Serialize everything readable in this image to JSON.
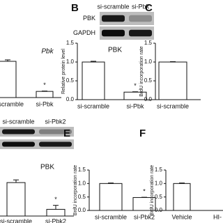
{
  "chart_data": [
    {
      "type": "bar",
      "title": "Pbk",
      "title_style": "italic",
      "categories": [
        "si-scramble",
        "si-Pbk"
      ],
      "values": [
        1.0,
        0.17
      ],
      "errors": [
        0.04,
        0.01
      ],
      "ylim": [
        0,
        1.5
      ],
      "annotations": [
        {
          "text": "*",
          "category": 1
        }
      ]
    },
    {
      "type": "bar",
      "panel": "B",
      "title": "PBK",
      "ylabel": "Relative protein level",
      "categories": [
        "si-scramble",
        "si-Pbk"
      ],
      "values": [
        1.0,
        0.2
      ],
      "errors": [
        0.02,
        0.01
      ],
      "ylim": [
        0,
        1.5
      ],
      "yticks": [
        {
          "value": 0,
          "label": "0.0"
        },
        {
          "value": 0.5,
          "label": "0.5"
        },
        {
          "value": 1,
          "label": "1.0"
        },
        {
          "value": 1.5,
          "label": "1.5"
        }
      ],
      "annotations": [
        {
          "text": "*",
          "category": 1
        }
      ],
      "blot": {
        "lanes": [
          "si-scramble",
          "si-Pbk"
        ],
        "rows": [
          "PBK",
          "GAPDH"
        ]
      }
    },
    {
      "type": "bar",
      "panel": "C",
      "ylabel": "BrdU incorporation rate",
      "categories": [
        "si-scramble"
      ],
      "values": [
        1.0
      ],
      "errors": [
        0.01
      ],
      "ylim": [
        0,
        1.5
      ],
      "yticks": [
        {
          "value": 0,
          "label": "0.0"
        },
        {
          "value": 0.5,
          "label": "0.5"
        },
        {
          "value": 1,
          "label": "1.0"
        },
        {
          "value": 1.5,
          "label": "1.5"
        }
      ]
    },
    {
      "type": "bar",
      "title": "PBK",
      "categories": [
        "si-scramble",
        "si-Pbk2"
      ],
      "values": [
        1.0,
        0.2
      ],
      "errors": [
        0.08,
        0.12
      ],
      "ylim": [
        0,
        1.5
      ],
      "annotations": [
        {
          "text": "*",
          "category": 1
        }
      ],
      "blot": {
        "lanes": [
          "si-scramble",
          "si-Pbk2"
        ]
      }
    },
    {
      "type": "bar",
      "panel": "E",
      "ylabel": "BrdU incorporation rate",
      "categories": [
        "si-scramble",
        "si-Pbk2"
      ],
      "values": [
        1.0,
        0.48
      ],
      "errors": [
        0.02,
        0.01
      ],
      "ylim": [
        0,
        1.5
      ],
      "yticks": [
        {
          "value": 0,
          "label": "0.0"
        },
        {
          "value": 0.5,
          "label": "0.5"
        },
        {
          "value": 1,
          "label": "1.0"
        },
        {
          "value": 1.5,
          "label": "1.5"
        }
      ],
      "annotations": [
        {
          "text": "*",
          "category": 1
        }
      ]
    },
    {
      "type": "bar",
      "panel": "F",
      "ylabel": "BrdU incorporation rate",
      "categories": [
        "Vehicle",
        "HI-"
      ],
      "values": [
        1.0,
        null
      ],
      "errors": [
        0.02,
        null
      ],
      "ylim": [
        0,
        1.5
      ],
      "yticks": [
        {
          "value": 0,
          "label": "0.0"
        },
        {
          "value": 0.5,
          "label": "0.5"
        },
        {
          "value": 1,
          "label": "1.0"
        },
        {
          "value": 1.5,
          "label": "1.5"
        }
      ]
    }
  ]
}
